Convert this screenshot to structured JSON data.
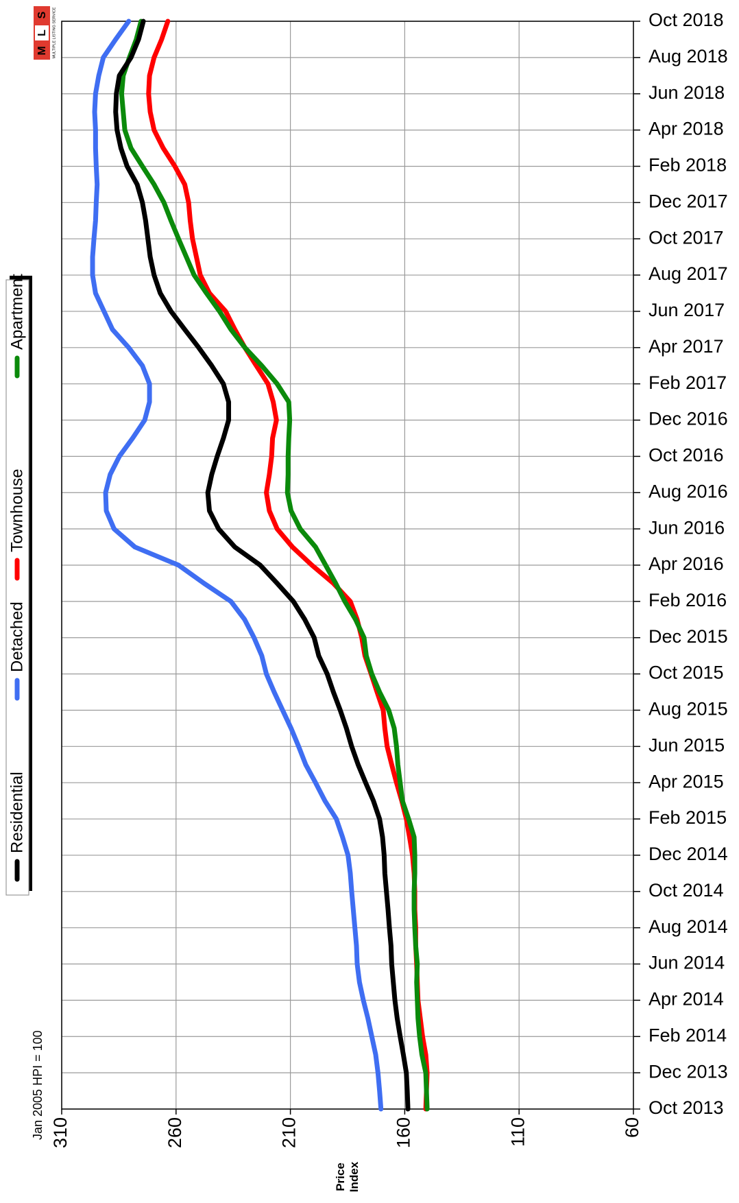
{
  "chart_data": {
    "type": "line",
    "orientation": "vertical-categories",
    "categories": [
      "Oct 2013",
      null,
      "Dec 2013",
      null,
      "Feb 2014",
      null,
      "Apr 2014",
      null,
      "Jun 2014",
      null,
      "Aug 2014",
      null,
      "Oct 2014",
      null,
      "Dec 2014",
      null,
      "Feb 2015",
      null,
      "Apr 2015",
      null,
      "Jun 2015",
      null,
      "Aug 2015",
      null,
      "Oct 2015",
      null,
      "Dec 2015",
      null,
      "Feb 2016",
      null,
      "Apr 2016",
      null,
      "Jun 2016",
      null,
      "Aug 2016",
      null,
      "Oct 2016",
      null,
      "Dec 2016",
      null,
      "Feb 2017",
      null,
      "Apr 2017",
      null,
      "Jun 2017",
      null,
      "Aug 2017",
      null,
      "Oct 2017",
      null,
      "Dec 2017",
      null,
      "Feb 2018",
      null,
      "Apr 2018",
      null,
      "Jun 2018",
      null,
      "Aug 2018",
      null,
      "Oct 2018"
    ],
    "series": [
      {
        "name": "Residential",
        "color": "#000000",
        "values": [
          158.6,
          158.9,
          159.3,
          160.6,
          162,
          163.3,
          164.3,
          165,
          165.7,
          166,
          166.7,
          167.3,
          168,
          168.7,
          169,
          169.7,
          171,
          173.7,
          177.1,
          180.4,
          183.2,
          185.5,
          188.2,
          191.2,
          193.9,
          197.6,
          199.6,
          203.7,
          208.7,
          215.8,
          223.2,
          234.3,
          241.4,
          245.4,
          246.1,
          244.4,
          242,
          239.3,
          237,
          237,
          239.3,
          244.4,
          250.1,
          256.2,
          262.2,
          266.9,
          269.6,
          271.3,
          272.3,
          273.3,
          274.7,
          277,
          281.4,
          284.1,
          285.8,
          286.4,
          286.1,
          284.8,
          279.7,
          276.4,
          274.3
        ]
      },
      {
        "name": "Detached",
        "color": "#3f6ef2",
        "values": [
          170.4,
          171,
          171.7,
          172.7,
          174.4,
          176.1,
          178.1,
          179.8,
          180.8,
          181.1,
          181.8,
          182.5,
          183.2,
          183.8,
          184.8,
          187.2,
          189.9,
          194.9,
          199,
          203.3,
          206.4,
          209.7,
          213.4,
          217.1,
          220.5,
          222.5,
          225.9,
          230,
          236,
          247.8,
          258.9,
          278,
          287.1,
          290.5,
          290.8,
          288.8,
          284.8,
          279,
          273.7,
          271.6,
          271.6,
          274.7,
          280.7,
          287.8,
          291.5,
          295.2,
          296.5,
          296.5,
          295.9,
          295.2,
          294.9,
          294.5,
          294.9,
          295.2,
          295.2,
          295.6,
          295.2,
          293.8,
          291.8,
          286.4,
          280.7
        ]
      },
      {
        "name": "Townhouse",
        "color": "#ff0000",
        "values": [
          150.8,
          150.5,
          150.2,
          150.8,
          152.2,
          153.2,
          154.2,
          154.5,
          154.8,
          155.2,
          155.2,
          155.6,
          155.6,
          155.9,
          156.6,
          157.9,
          159.3,
          161.3,
          163.6,
          165.7,
          167.7,
          168.7,
          169.4,
          172.1,
          174.7,
          177.4,
          178.8,
          180.8,
          183.8,
          191.2,
          200.6,
          209.1,
          215.8,
          219.2,
          220.5,
          219.2,
          218.2,
          217.8,
          216.1,
          217.5,
          219.8,
          224.9,
          229.9,
          234.3,
          238.3,
          245.4,
          249.4,
          251.1,
          252.8,
          253.8,
          254.5,
          256.2,
          260.5,
          265.6,
          269.6,
          271.3,
          272,
          271.6,
          269.6,
          266.3,
          263.6
        ]
      },
      {
        "name": "Apartment",
        "color": "#0b8a0b",
        "values": [
          150.2,
          150.5,
          150.8,
          152.5,
          153.5,
          154.2,
          154.5,
          154.8,
          154.5,
          155.2,
          155.6,
          155.9,
          155.9,
          155.6,
          155.6,
          155.9,
          158.3,
          161,
          162,
          163,
          163.6,
          164.6,
          167,
          171,
          174.4,
          176.8,
          177.8,
          181.5,
          186.2,
          190.2,
          194.6,
          199,
          205.7,
          209.7,
          211.3,
          211,
          211,
          210.7,
          210.3,
          210.7,
          215.8,
          222.5,
          229.9,
          236,
          241,
          246.7,
          252.1,
          255.5,
          258.9,
          262.2,
          265.3,
          269.6,
          274.7,
          279.7,
          282.4,
          283.1,
          283.8,
          283.1,
          280.4,
          277.4,
          275.3
        ]
      }
    ],
    "xlim": [
      310,
      60
    ],
    "xticks": [
      310,
      260,
      210,
      160,
      110,
      60
    ],
    "x_label": "Price Index",
    "note": "Jan 2005 HPI = 100",
    "grid": true,
    "legend": "left",
    "logo": {
      "letters": [
        "M",
        "L",
        "S"
      ],
      "tagline": "MULTIPLE LISTING SERVICE"
    }
  }
}
